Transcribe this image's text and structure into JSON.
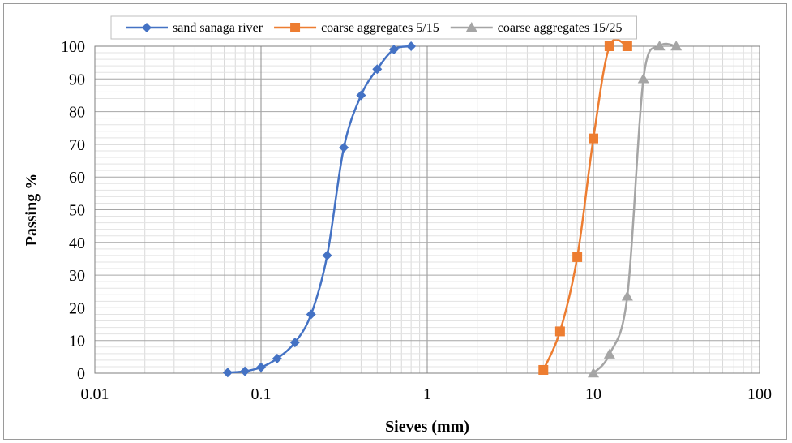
{
  "chart_data": {
    "type": "line",
    "xlabel": "Sieves (mm)",
    "ylabel": "Passing %",
    "x_scale": "log",
    "xlim": [
      0.01,
      100
    ],
    "ylim": [
      0,
      100
    ],
    "x_ticks": [
      "0.01",
      "0.1",
      "1",
      "10",
      "100"
    ],
    "y_ticks": [
      "0",
      "10",
      "20",
      "30",
      "40",
      "50",
      "60",
      "70",
      "80",
      "90",
      "100"
    ],
    "grid": true,
    "legend_position": "top",
    "series": [
      {
        "name": "sand sanaga river",
        "color": "#4472C4",
        "marker": "diamond",
        "x": [
          0.063,
          0.08,
          0.1,
          0.125,
          0.16,
          0.2,
          0.25,
          0.315,
          0.4,
          0.5,
          0.63,
          0.8
        ],
        "y": [
          0.2,
          0.6,
          1.8,
          4.5,
          9.4,
          18,
          36,
          69,
          85,
          93,
          99,
          100
        ]
      },
      {
        "name": "coarse aggregates 5/15",
        "color": "#ED7D31",
        "marker": "square",
        "x": [
          5,
          6.3,
          8,
          10,
          12.5,
          16
        ],
        "y": [
          1,
          12.8,
          35.5,
          71.8,
          100,
          100
        ]
      },
      {
        "name": "coarse aggregates 15/25",
        "color": "#A5A5A5",
        "marker": "triangle",
        "x": [
          10,
          12.5,
          16,
          20,
          25,
          31.5
        ],
        "y": [
          0,
          5.8,
          23.5,
          90,
          100,
          100
        ]
      }
    ]
  }
}
